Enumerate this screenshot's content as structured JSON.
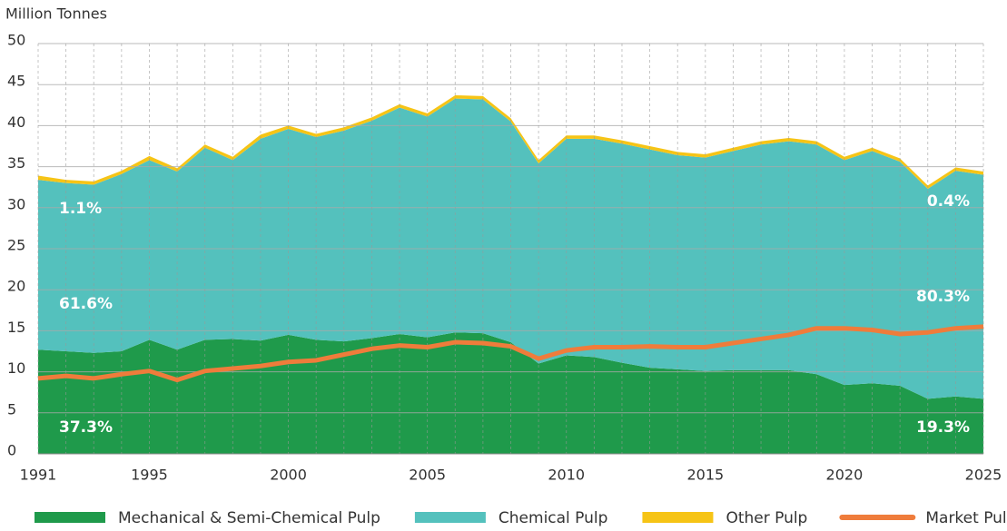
{
  "chart_data": {
    "type": "stacked-area",
    "y_label": "Million Tonnes",
    "x": [
      1991,
      1992,
      1993,
      1994,
      1995,
      1996,
      1997,
      1998,
      1999,
      2000,
      2001,
      2002,
      2003,
      2004,
      2005,
      2006,
      2007,
      2008,
      2009,
      2010,
      2011,
      2012,
      2013,
      2014,
      2015,
      2016,
      2017,
      2018,
      2019,
      2020,
      2021,
      2022,
      2023,
      2024,
      2025
    ],
    "xlim": [
      1991,
      2025
    ],
    "xticks": [
      1991,
      1995,
      2000,
      2005,
      2010,
      2015,
      2020,
      2025
    ],
    "ylim": [
      0,
      50
    ],
    "yticks": [
      0,
      5,
      10,
      15,
      20,
      25,
      30,
      35,
      40,
      45,
      50
    ],
    "grid": true,
    "series": [
      {
        "name": "Mechanical & Semi-Chemical Pulp",
        "color": "#1f9a4b",
        "kind": "area",
        "values": [
          12.7,
          12.5,
          12.3,
          12.5,
          13.9,
          12.7,
          13.9,
          14.0,
          13.8,
          14.5,
          13.9,
          13.7,
          14.1,
          14.6,
          14.2,
          14.8,
          14.7,
          13.6,
          11.0,
          12.0,
          11.8,
          11.1,
          10.5,
          10.3,
          10.1,
          10.2,
          10.2,
          10.2,
          9.7,
          8.4,
          8.6,
          8.3,
          6.7,
          7.0,
          6.7
        ]
      },
      {
        "name": "Chemical Pulp",
        "color": "#54c1bd",
        "kind": "area",
        "values": [
          20.7,
          20.5,
          20.5,
          21.6,
          21.9,
          21.7,
          23.4,
          21.8,
          24.6,
          25.1,
          24.7,
          25.7,
          26.5,
          27.6,
          26.9,
          28.5,
          28.5,
          26.9,
          24.4,
          26.4,
          26.6,
          26.7,
          26.6,
          26.1,
          26.0,
          26.7,
          27.5,
          27.9,
          28.0,
          27.4,
          28.3,
          27.3,
          25.6,
          27.5,
          27.3
        ]
      },
      {
        "name": "Other Pulp",
        "color": "#f6c416",
        "kind": "area",
        "values": [
          0.5,
          0.4,
          0.4,
          0.4,
          0.5,
          0.4,
          0.4,
          0.4,
          0.5,
          0.4,
          0.4,
          0.4,
          0.4,
          0.4,
          0.4,
          0.4,
          0.4,
          0.4,
          0.4,
          0.4,
          0.4,
          0.4,
          0.4,
          0.4,
          0.4,
          0.4,
          0.4,
          0.4,
          0.4,
          0.4,
          0.4,
          0.4,
          0.4,
          0.4,
          0.4
        ]
      },
      {
        "name": "Market Pulp Production",
        "color": "#ef7c3b",
        "kind": "line",
        "values": [
          9.2,
          9.5,
          9.2,
          9.7,
          10.1,
          9.0,
          10.1,
          10.4,
          10.7,
          11.2,
          11.4,
          12.1,
          12.8,
          13.2,
          13.0,
          13.6,
          13.5,
          13.1,
          11.6,
          12.6,
          13.0,
          13.0,
          13.1,
          13.0,
          13.0,
          13.5,
          14.0,
          14.5,
          15.3,
          15.3,
          15.1,
          14.6,
          14.8,
          15.3,
          15.5
        ]
      }
    ],
    "annotations": [
      "1.1%",
      "61.6%",
      "37.3%",
      "0.4%",
      "80.3%",
      "19.3%"
    ]
  }
}
